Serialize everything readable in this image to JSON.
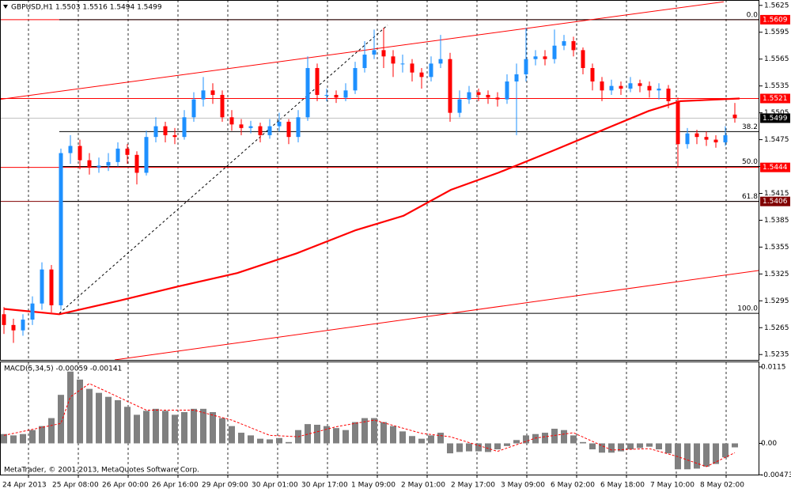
{
  "chart_data": [
    {
      "type": "candlestick",
      "title": "GBPUSD,H1  1.5503 1.5516 1.5494 1.5499",
      "up_color": "#1e90ff",
      "down_color": "#ff0000",
      "open": [
        1.528,
        1.5268,
        1.5262,
        1.5274,
        1.5292,
        1.533,
        1.529,
        1.546,
        1.5468,
        1.5452,
        1.5444,
        1.5446,
        1.545,
        1.5465,
        1.5458,
        1.5438,
        1.5478,
        1.549,
        1.548,
        1.5478,
        1.55,
        1.552,
        1.553,
        1.5525,
        1.55,
        1.5492,
        1.5488,
        1.549,
        1.548,
        1.549,
        1.5495,
        1.5478,
        1.55,
        1.5555,
        1.5525,
        1.5525,
        1.5522,
        1.553,
        1.5555,
        1.557,
        1.5575,
        1.5568,
        1.556,
        1.556,
        1.555,
        1.5545,
        1.556,
        1.5565,
        1.5505,
        1.552,
        1.5528,
        1.5525,
        1.5522,
        1.552,
        1.554,
        1.5548,
        1.5565,
        1.5568,
        1.5565,
        1.558,
        1.5585,
        1.5575,
        1.5555,
        1.554,
        1.553,
        1.5535,
        1.5532,
        1.5538,
        1.5535,
        1.553,
        1.5532,
        1.5518,
        1.547,
        1.5482,
        1.5478,
        1.5475,
        1.5472,
        1.5503
      ],
      "high": [
        1.5288,
        1.5275,
        1.528,
        1.53,
        1.5338,
        1.5335,
        1.5465,
        1.548,
        1.5475,
        1.546,
        1.5455,
        1.546,
        1.5472,
        1.547,
        1.5462,
        1.5485,
        1.55,
        1.5495,
        1.5488,
        1.5508,
        1.5528,
        1.5545,
        1.5538,
        1.553,
        1.5508,
        1.5498,
        1.5496,
        1.5494,
        1.5498,
        1.5505,
        1.5498,
        1.5508,
        1.5568,
        1.556,
        1.5532,
        1.553,
        1.5538,
        1.5562,
        1.5585,
        1.5598,
        1.56,
        1.5575,
        1.557,
        1.5565,
        1.5555,
        1.5568,
        1.5592,
        1.5572,
        1.553,
        1.5535,
        1.5532,
        1.553,
        1.5528,
        1.5548,
        1.556,
        1.56,
        1.5575,
        1.5575,
        1.5598,
        1.5592,
        1.559,
        1.5578,
        1.556,
        1.5545,
        1.5542,
        1.554,
        1.5545,
        1.5542,
        1.554,
        1.5538,
        1.5536,
        1.5522,
        1.5488,
        1.5486,
        1.5484,
        1.548,
        1.549,
        1.5516
      ],
      "low": [
        1.5258,
        1.5248,
        1.5256,
        1.5268,
        1.5285,
        1.5282,
        1.5285,
        1.5448,
        1.5442,
        1.5436,
        1.5438,
        1.544,
        1.5445,
        1.5448,
        1.5425,
        1.5435,
        1.5472,
        1.5472,
        1.547,
        1.5475,
        1.5495,
        1.5512,
        1.5515,
        1.5495,
        1.5485,
        1.548,
        1.5482,
        1.5472,
        1.5476,
        1.5484,
        1.547,
        1.5472,
        1.5496,
        1.5518,
        1.5518,
        1.5516,
        1.5518,
        1.5526,
        1.555,
        1.5565,
        1.5555,
        1.5545,
        1.555,
        1.554,
        1.5532,
        1.554,
        1.5555,
        1.5495,
        1.55,
        1.5515,
        1.5518,
        1.5515,
        1.5512,
        1.5515,
        1.548,
        1.554,
        1.5558,
        1.5558,
        1.556,
        1.5575,
        1.5568,
        1.5548,
        1.553,
        1.5518,
        1.5525,
        1.5525,
        1.5528,
        1.5528,
        1.5522,
        1.552,
        1.551,
        1.5445,
        1.5465,
        1.547,
        1.5468,
        1.5466,
        1.5468,
        1.5494
      ],
      "close": [
        1.5268,
        1.5262,
        1.5274,
        1.5292,
        1.533,
        1.529,
        1.546,
        1.5468,
        1.5452,
        1.5444,
        1.5446,
        1.545,
        1.5465,
        1.5458,
        1.5438,
        1.5478,
        1.549,
        1.548,
        1.5478,
        1.55,
        1.552,
        1.553,
        1.5525,
        1.55,
        1.5492,
        1.5488,
        1.549,
        1.548,
        1.549,
        1.5495,
        1.5478,
        1.55,
        1.5555,
        1.5525,
        1.5525,
        1.5522,
        1.553,
        1.5555,
        1.557,
        1.5575,
        1.5568,
        1.556,
        1.556,
        1.555,
        1.5545,
        1.556,
        1.5565,
        1.5505,
        1.552,
        1.5528,
        1.5525,
        1.5522,
        1.552,
        1.554,
        1.5548,
        1.5565,
        1.5568,
        1.5565,
        1.558,
        1.5585,
        1.5575,
        1.5555,
        1.554,
        1.553,
        1.5535,
        1.5532,
        1.5538,
        1.5535,
        1.553,
        1.5532,
        1.5518,
        1.547,
        1.5482,
        1.5478,
        1.5475,
        1.5472,
        1.548,
        1.5499
      ],
      "xlim": [
        -0.4167,
        79.5833
      ],
      "xticks": [
        {
          "value": 0,
          "label": "24 Apr 2013"
        },
        {
          "value": 5.25,
          "label": "25 Apr 08:00"
        },
        {
          "value": 10.5,
          "label": "26 Apr 00:00"
        },
        {
          "value": 15.75,
          "label": "26 Apr 16:00"
        },
        {
          "value": 21,
          "label": "29 Apr 09:00"
        },
        {
          "value": 26.25,
          "label": "30 Apr 01:00"
        },
        {
          "value": 31.5,
          "label": "30 Apr 17:00"
        },
        {
          "value": 36.75,
          "label": "1 May 09:00"
        },
        {
          "value": 42,
          "label": "2 May 01:00"
        },
        {
          "value": 47.25,
          "label": "2 May 17:00"
        },
        {
          "value": 52.5,
          "label": "3 May 09:00"
        },
        {
          "value": 57.75,
          "label": "6 May 02:00"
        },
        {
          "value": 63,
          "label": "6 May 18:00"
        },
        {
          "value": 68.25,
          "label": "7 May 10:00"
        },
        {
          "value": 73.5,
          "label": "8 May 02:00"
        }
      ],
      "ylim": [
        1.5229,
        1.5631
      ],
      "yticks": [
        1.5625,
        1.5595,
        1.5565,
        1.5535,
        1.5505,
        1.5475,
        1.5445,
        1.5415,
        1.5385,
        1.5355,
        1.5325,
        1.5295,
        1.5265,
        1.5235
      ],
      "levels": [
        {
          "value": 1.5609,
          "color": "#ff0000"
        },
        {
          "value": 1.5521,
          "color": "#ff0000"
        },
        {
          "value": 1.5444,
          "color": "#ff0000"
        },
        {
          "value": 1.5406,
          "color": "#800000"
        }
      ],
      "current_price": 1.5499,
      "fib": {
        "start": 5.83,
        "color": "#000000",
        "levels": [
          {
            "value": 1.5609,
            "label": "0.0"
          },
          {
            "value": 1.5484,
            "label": "38.2"
          },
          {
            "value": 1.5445,
            "label": "50.0"
          },
          {
            "value": 1.5406,
            "label": "61.8"
          },
          {
            "value": 1.5281,
            "label": "100.0"
          }
        ]
      },
      "trendlines": [
        {
          "x": [
            -0.4167,
            75.83
          ],
          "values": [
            1.552,
            1.5629
          ],
          "color": "#ff0000",
          "dashed": false
        },
        {
          "x": [
            11.67,
            79.58
          ],
          "values": [
            1.5229,
            1.5329
          ],
          "color": "#ff0000",
          "dashed": false
        },
        {
          "x": [
            5.83,
            40.42
          ],
          "values": [
            1.5281,
            1.5603
          ],
          "color": "#000000",
          "dashed": true
        }
      ],
      "ma": {
        "color": "#ff0000",
        "x": [
          0,
          5.83,
          12.08,
          18.33,
          24.58,
          30.83,
          37.08,
          42.08,
          47.08,
          52.08,
          57.92,
          62.92,
          67.92,
          71.25,
          77.5
        ],
        "values": [
          1.5286,
          1.528,
          1.5295,
          1.5311,
          1.5326,
          1.5348,
          1.5374,
          1.539,
          1.5419,
          1.5438,
          1.5463,
          1.5485,
          1.5507,
          1.5518,
          1.5521
        ]
      }
    },
    {
      "type": "macd",
      "title": "MACD(5,34,5) -0.00059 -0.00141",
      "credit": "MetaTrader, © 2001-2013, MetaQuotes Software Corp.",
      "color": "#808080",
      "values": [
        0.0014,
        0.0012,
        0.0014,
        0.002,
        0.0026,
        0.0038,
        0.0073,
        0.0108,
        0.0096,
        0.0082,
        0.0076,
        0.007,
        0.0065,
        0.0055,
        0.0043,
        0.0049,
        0.0052,
        0.0049,
        0.0043,
        0.0047,
        0.0052,
        0.0052,
        0.0047,
        0.0038,
        0.0026,
        0.0016,
        0.0012,
        0.0007,
        0.0006,
        0.0008,
        0.0002,
        0.002,
        0.0029,
        0.0028,
        0.0026,
        0.0023,
        0.002,
        0.0032,
        0.0038,
        0.0038,
        0.0032,
        0.0026,
        0.0018,
        0.0011,
        0.0007,
        0.0012,
        0.0016,
        -0.0015,
        -0.0013,
        -0.0012,
        -0.0012,
        -0.0013,
        -0.0009,
        -0.0004,
        0.0005,
        0.0012,
        0.0014,
        0.0016,
        0.0022,
        0.002,
        0.0012,
        0.0002,
        -0.0009,
        -0.0014,
        -0.0014,
        -0.0012,
        -0.0009,
        -0.0007,
        -0.0005,
        -0.0009,
        -0.0015,
        -0.0039,
        -0.0039,
        -0.0038,
        -0.0035,
        -0.0031,
        -0.0021,
        -0.0006
      ],
      "signal": {
        "color": "#ff0000",
        "x": [
          0,
          6,
          7,
          9,
          12,
          15,
          20,
          24,
          28,
          31,
          35,
          39,
          44,
          47,
          52,
          56,
          60,
          64,
          68,
          71,
          74,
          77
        ],
        "values": [
          0.0012,
          0.003,
          0.007,
          0.009,
          0.007,
          0.005,
          0.005,
          0.0035,
          0.0012,
          0.001,
          0.0025,
          0.0035,
          0.0015,
          0.001,
          -0.0012,
          0.0008,
          0.0016,
          -0.001,
          -0.0008,
          -0.002,
          -0.0035,
          -0.0014
        ]
      },
      "ylim": [
        -0.0047,
        0.0122
      ],
      "yticks": [
        0.0115,
        {
          "value": 0,
          "label": "0.00"
        },
        -0.00473
      ]
    }
  ]
}
